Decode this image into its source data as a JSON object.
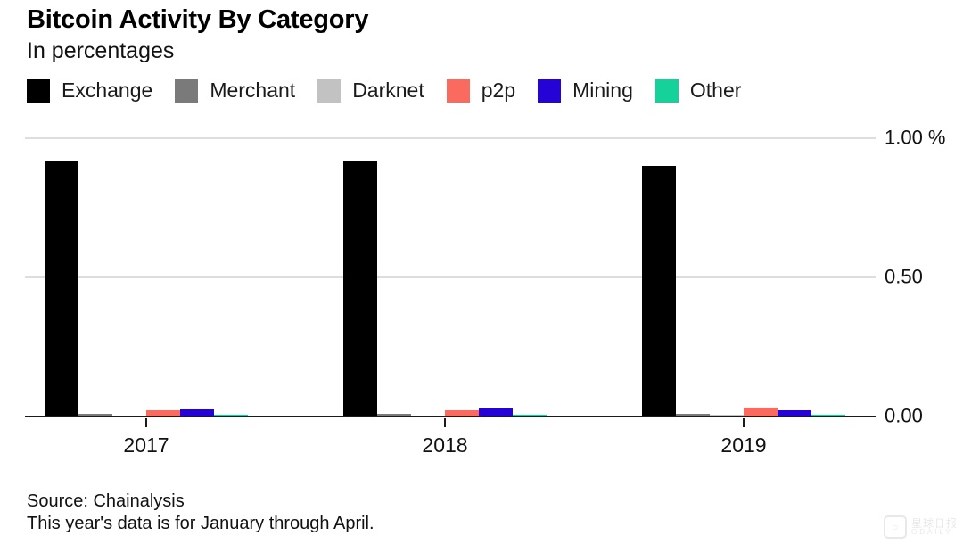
{
  "header": {
    "title": "Bitcoin Activity By Category",
    "subtitle": "In percentages"
  },
  "chart_data": {
    "type": "bar",
    "title": "Bitcoin Activity By Category",
    "subtitle": "In percentages",
    "unit": "%",
    "categories": [
      "2017",
      "2018",
      "2019"
    ],
    "series": [
      {
        "name": "Exchange",
        "color": "#000000",
        "values": [
          0.92,
          0.92,
          0.9
        ]
      },
      {
        "name": "Merchant",
        "color": "#7a7a7a",
        "values": [
          0.011,
          0.009,
          0.01
        ]
      },
      {
        "name": "Darknet",
        "color": "#c2c2c2",
        "values": [
          0.003,
          0.002,
          0.005
        ]
      },
      {
        "name": "p2p",
        "color": "#fa6a5e",
        "values": [
          0.024,
          0.022,
          0.032
        ]
      },
      {
        "name": "Mining",
        "color": "#2503d6",
        "values": [
          0.027,
          0.03,
          0.024
        ]
      },
      {
        "name": "Other",
        "color": "#14d29a",
        "values": [
          0.008,
          0.006,
          0.006
        ]
      }
    ],
    "y_axis": [
      {
        "label": "0.00",
        "value": 0
      },
      {
        "label": "0.50",
        "value": 0.5
      },
      {
        "label": "1.00 %",
        "value": 1.0
      }
    ],
    "ylim": [
      0,
      1.0
    ],
    "grid": true,
    "legend_position": "top"
  },
  "footer": {
    "source": "Source: Chainalysis",
    "note": "This year's data is for January through April."
  },
  "watermark": {
    "cn": "星球日报",
    "en": "ODAILY"
  }
}
